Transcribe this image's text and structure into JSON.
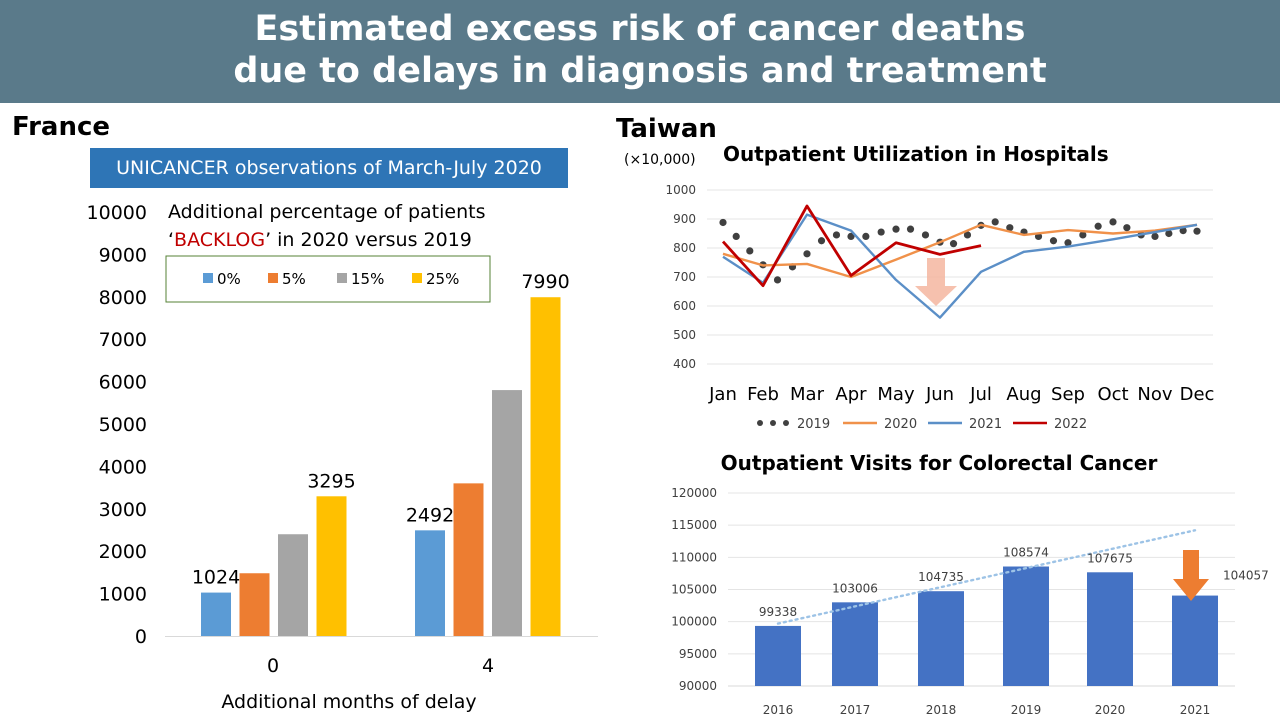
{
  "header": {
    "title_line1": "Estimated excess risk of cancer deaths",
    "title_line2": "due to delays in diagnosis and treatment"
  },
  "france": {
    "region_label": "France",
    "box_label": "UNICANCER observations of March-July 2020"
  },
  "taiwan": {
    "region_label": "Taiwan",
    "unit_label": "(×10,000)"
  },
  "colors": {
    "banner": "#5a7a8a",
    "box": "#2e75b6",
    "c0": "#5b9bd5",
    "c5": "#ed7d31",
    "c15": "#a5a5a5",
    "c25": "#ffc000",
    "line2020": "#f0914a",
    "line2021": "#5b8fc7",
    "line2022": "#c00000",
    "bar": "#4472c4",
    "arrow": "#ed7d31",
    "down_arrow_light": "#f4b6a0"
  },
  "chart_data": [
    {
      "type": "bar",
      "title": "",
      "note_line1": "Additional percentage of patients",
      "note_line2_pre": "‘",
      "note_line2_red": "BACKLOG",
      "note_line2_post": "’ in 2020 versus 2019",
      "xlabel": "Additional months of delay",
      "ylabel": "",
      "ylim": [
        0,
        10000
      ],
      "yticks": [
        0,
        1000,
        2000,
        3000,
        4000,
        5000,
        6000,
        7000,
        8000,
        9000,
        10000
      ],
      "categories": [
        "0",
        "4"
      ],
      "series": [
        {
          "name": "0%",
          "values": [
            1024,
            2492
          ],
          "labels": [
            "1024",
            "2492"
          ]
        },
        {
          "name": "5%",
          "values": [
            1480,
            3600
          ],
          "labels": [
            "",
            ""
          ]
        },
        {
          "name": "15%",
          "values": [
            2400,
            5800
          ],
          "labels": [
            "",
            ""
          ]
        },
        {
          "name": "25%",
          "values": [
            3295,
            7990
          ],
          "labels": [
            "3295",
            "7990"
          ]
        }
      ]
    },
    {
      "type": "line",
      "title": "Outpatient Utilization in Hospitals",
      "ylim": [
        400,
        1000
      ],
      "yticks": [
        400,
        500,
        600,
        700,
        800,
        900,
        1000
      ],
      "months": [
        "Jan",
        "Feb",
        "Mar",
        "Apr",
        "May",
        "Jun",
        "Jul",
        "Aug",
        "Sep",
        "Oct",
        "Nov",
        "Dec"
      ],
      "series": [
        {
          "name": "2019",
          "style": "dots",
          "points": [
            [
              1,
              888
            ],
            [
              1.33,
              840
            ],
            [
              1.67,
              790
            ],
            [
              2,
              742
            ],
            [
              2.33,
              690
            ],
            [
              2.67,
              735
            ],
            [
              3,
              780
            ],
            [
              3.33,
              825
            ],
            [
              3.67,
              845
            ],
            [
              4,
              840
            ],
            [
              4.33,
              840
            ],
            [
              4.67,
              855
            ],
            [
              5,
              865
            ],
            [
              5.33,
              865
            ],
            [
              5.67,
              845
            ],
            [
              6,
              820
            ],
            [
              6.33,
              815
            ],
            [
              6.67,
              845
            ],
            [
              7,
              878
            ],
            [
              7.33,
              890
            ],
            [
              7.67,
              870
            ],
            [
              8,
              855
            ],
            [
              8.33,
              840
            ],
            [
              8.67,
              825
            ],
            [
              9,
              818
            ],
            [
              9.33,
              845
            ],
            [
              9.67,
              875
            ],
            [
              10,
              890
            ],
            [
              10.33,
              870
            ],
            [
              10.67,
              845
            ],
            [
              11,
              840
            ],
            [
              11.33,
              850
            ],
            [
              11.67,
              860
            ],
            [
              12,
              858
            ]
          ]
        },
        {
          "name": "2020",
          "style": "line",
          "values": [
            780,
            740,
            745,
            700,
            760,
            820,
            880,
            845,
            862,
            850,
            860,
            880
          ]
        },
        {
          "name": "2021",
          "style": "line",
          "values": [
            770,
            680,
            915,
            860,
            690,
            560,
            718,
            787,
            805,
            830,
            855,
            880
          ]
        },
        {
          "name": "2022",
          "style": "line",
          "values": [
            822,
            670,
            945,
            705,
            818,
            778,
            808
          ]
        }
      ]
    },
    {
      "type": "bar",
      "title": "Outpatient Visits for Colorectal Cancer",
      "ylim": [
        90000,
        120000
      ],
      "yticks": [
        90000,
        95000,
        100000,
        105000,
        110000,
        115000,
        120000
      ],
      "categories": [
        "2016",
        "2017",
        "2018",
        "2019",
        "2020",
        "2021"
      ],
      "values": [
        99338,
        103006,
        104735,
        108574,
        107675,
        104057
      ],
      "labels": [
        "99338",
        "103006",
        "104735",
        "108574",
        "107675",
        "104057"
      ],
      "trendline": {
        "from": [
          1,
          99700
        ],
        "to": [
          6,
          114200
        ]
      }
    }
  ]
}
